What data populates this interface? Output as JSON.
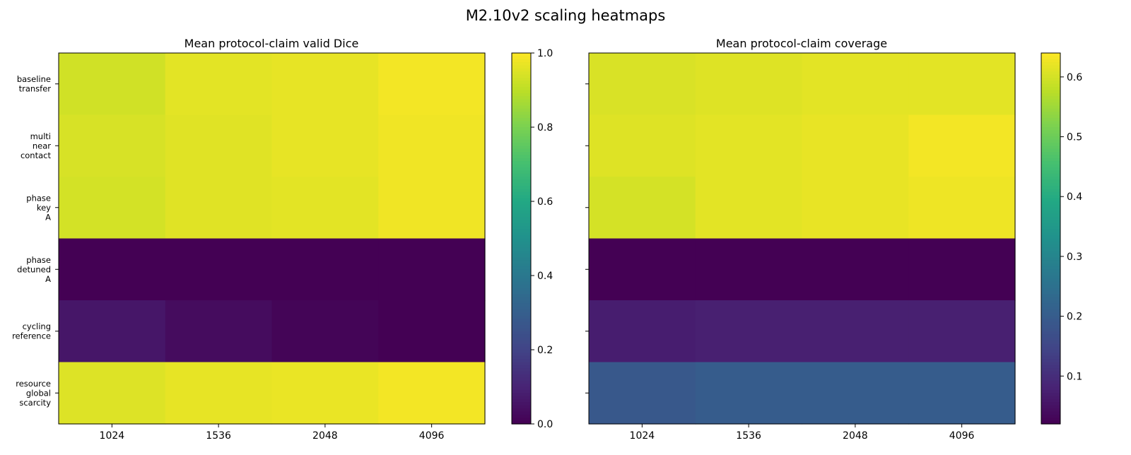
{
  "figure": {
    "title": "M2.10v2 scaling heatmaps"
  },
  "colormap": "viridis",
  "chart_data": [
    {
      "type": "heatmap",
      "title": "Mean protocol-claim valid Dice",
      "x_categories": [
        "1024",
        "1536",
        "2048",
        "4096"
      ],
      "y_categories": [
        [
          "baseline",
          "transfer"
        ],
        [
          "multi",
          "near",
          "contact"
        ],
        [
          "phase",
          "key",
          "A"
        ],
        [
          "phase",
          "detuned",
          "A"
        ],
        [
          "cycling",
          "reference"
        ],
        [
          "resource",
          "global",
          "scarcity"
        ]
      ],
      "values": [
        [
          0.93,
          0.96,
          0.965,
          0.985
        ],
        [
          0.94,
          0.955,
          0.965,
          0.98
        ],
        [
          0.935,
          0.955,
          0.96,
          0.98
        ],
        [
          0.0,
          0.0,
          0.0,
          0.0
        ],
        [
          0.06,
          0.03,
          0.01,
          0.0
        ],
        [
          0.95,
          0.965,
          0.97,
          0.985
        ]
      ],
      "colorbar": {
        "min": 0.0,
        "max": 1.0,
        "ticks": [
          "0.0",
          "0.2",
          "0.4",
          "0.6",
          "0.8",
          "1.0"
        ]
      }
    },
    {
      "type": "heatmap",
      "title": "Mean protocol-claim coverage",
      "x_categories": [
        "1024",
        "1536",
        "2048",
        "4096"
      ],
      "y_categories": [
        [
          "baseline",
          "transfer"
        ],
        [
          "multi",
          "near",
          "contact"
        ],
        [
          "phase",
          "key",
          "A"
        ],
        [
          "phase",
          "detuned",
          "A"
        ],
        [
          "cycling",
          "reference"
        ],
        [
          "resource",
          "global",
          "scarcity"
        ]
      ],
      "values": [
        [
          0.605,
          0.61,
          0.615,
          0.615
        ],
        [
          0.61,
          0.615,
          0.62,
          0.63
        ],
        [
          0.6,
          0.615,
          0.62,
          0.625
        ],
        [
          0.02,
          0.02,
          0.02,
          0.02
        ],
        [
          0.07,
          0.075,
          0.075,
          0.075
        ],
        [
          0.19,
          0.2,
          0.2,
          0.2
        ]
      ],
      "colorbar": {
        "min": 0.02,
        "max": 0.64,
        "ticks": [
          "0.1",
          "0.2",
          "0.3",
          "0.4",
          "0.5",
          "0.6"
        ]
      }
    }
  ]
}
